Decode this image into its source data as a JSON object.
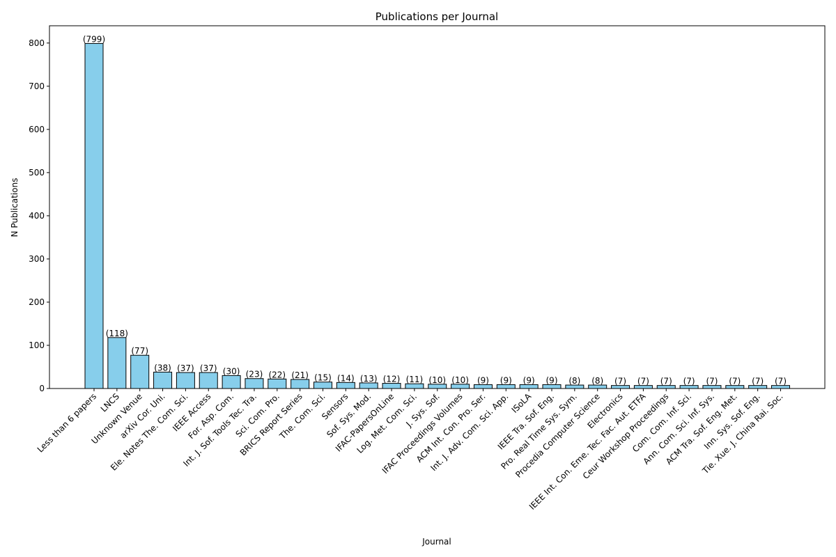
{
  "chart_data": {
    "type": "bar",
    "title": "Publications per Journal",
    "xlabel": "Journal",
    "ylabel": "N Publications",
    "categories": [
      "Less than 6 papers",
      "LNCS",
      "Unknown Venue",
      "arXiv Cor. Uni.",
      "Ele. Notes The. Com. Sci.",
      "IEEE Access",
      "For. Asp. Com.",
      "Int. J. Sof. Tools Tec. Tra.",
      "Sci. Com. Pro.",
      "BRICS Report Series",
      "The. Com. Sci.",
      "Sensors",
      "Sof. Sys. Mod.",
      "IFAC-PapersOnLine",
      "Log. Met. Com. Sci.",
      "J. Sys. Sof.",
      "IFAC Proceedings Volumes",
      "ACM Int. Con. Pro. Ser.",
      "Int. J. Adv. Com. Sci. App.",
      "ISoLA",
      "IEEE Tra. Sof. Eng.",
      "Pro. Real Time Sys. Sym.",
      "Procedia Computer Science",
      "Electronics",
      "IEEE Int. Con. Eme. Tec. Fac. Aut. ETFA",
      "Ceur Workshop Proceedings",
      "Com. Com. Inf. Sci.",
      "Ann. Com. Sci. Inf. Sys.",
      "ACM Tra. Sof. Eng. Met.",
      "Inn. Sys. Sof. Eng.",
      "Tie. Xue. J. China Rai. Soc."
    ],
    "values": [
      799,
      118,
      77,
      38,
      37,
      37,
      30,
      23,
      22,
      21,
      15,
      14,
      13,
      12,
      11,
      10,
      10,
      9,
      9,
      9,
      9,
      8,
      8,
      7,
      7,
      7,
      7,
      7,
      7,
      7,
      7
    ],
    "data_labels": [
      "(799)",
      "(118)",
      "(77)",
      "(38)",
      "(37)",
      "(37)",
      "(30)",
      "(23)",
      "(22)",
      "(21)",
      "(15)",
      "(14)",
      "(13)",
      "(12)",
      "(11)",
      "(10)",
      "(10)",
      "(9)",
      "(9)",
      "(9)",
      "(9)",
      "(8)",
      "(8)",
      "(7)",
      "(7)",
      "(7)",
      "(7)",
      "(7)",
      "(7)",
      "(7)",
      "(7)"
    ],
    "yticks": [
      "0",
      "100",
      "200",
      "300",
      "400",
      "500",
      "600",
      "700",
      "800"
    ],
    "ylim": [
      0,
      840
    ],
    "bar_color": "#87ceeb",
    "bar_edge_color": "#000000",
    "grid": false
  }
}
